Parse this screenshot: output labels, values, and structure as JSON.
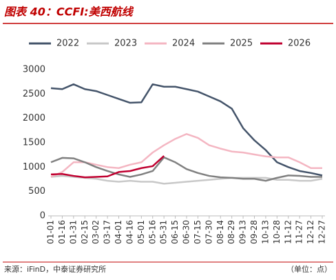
{
  "chart_data": {
    "type": "line",
    "title": "图表 40：CCFI:美西航线",
    "source": "来源：iFinD，中泰证券研究所",
    "unit": "（单位：点）",
    "categories": [
      "01-01",
      "01-16",
      "01-31",
      "02-15",
      "03-02",
      "03-17",
      "04-01",
      "04-16",
      "05-01",
      "05-16",
      "05-31",
      "06-15",
      "06-30",
      "07-15",
      "07-30",
      "08-14",
      "08-29",
      "09-13",
      "09-28",
      "10-13",
      "10-28",
      "11-12",
      "11-27",
      "12-12",
      "12-27"
    ],
    "series": [
      {
        "name": "2022",
        "color": "#44546a",
        "values": [
          2620,
          2600,
          2700,
          2600,
          2560,
          2480,
          2400,
          2320,
          2330,
          2700,
          2650,
          2650,
          2600,
          2550,
          2450,
          2350,
          2200,
          1800,
          1550,
          1350,
          1100,
          1000,
          920,
          880,
          830
        ]
      },
      {
        "name": "2023",
        "color": "#c8c8c8",
        "values": [
          800,
          820,
          800,
          780,
          760,
          720,
          700,
          720,
          700,
          700,
          660,
          680,
          700,
          720,
          740,
          760,
          780,
          780,
          780,
          780,
          740,
          740,
          720,
          720,
          760
        ]
      },
      {
        "name": "2024",
        "color": "#f4b6c2",
        "values": [
          800,
          900,
          1100,
          1100,
          1050,
          1000,
          980,
          1050,
          1100,
          1300,
          1450,
          1580,
          1680,
          1600,
          1450,
          1380,
          1320,
          1300,
          1260,
          1220,
          1200,
          1200,
          1100,
          980,
          980
        ]
      },
      {
        "name": "2025",
        "color": "#808080",
        "values": [
          1100,
          1190,
          1180,
          1100,
          1000,
          920,
          850,
          800,
          850,
          920,
          1200,
          1100,
          960,
          880,
          820,
          790,
          780,
          760,
          760,
          720,
          780,
          830,
          820,
          800,
          800
        ]
      },
      {
        "name": "2026",
        "color": "#c00030",
        "values": [
          850,
          860,
          820,
          790,
          800,
          810,
          900,
          920,
          980,
          1020,
          1230,
          null,
          null,
          null,
          null,
          null,
          null,
          null,
          null,
          null,
          null,
          null,
          null,
          null,
          null
        ]
      }
    ],
    "ylim": [
      0,
      3000
    ],
    "yticks": [
      0,
      500,
      1000,
      1500,
      2000,
      2500,
      3000
    ]
  }
}
